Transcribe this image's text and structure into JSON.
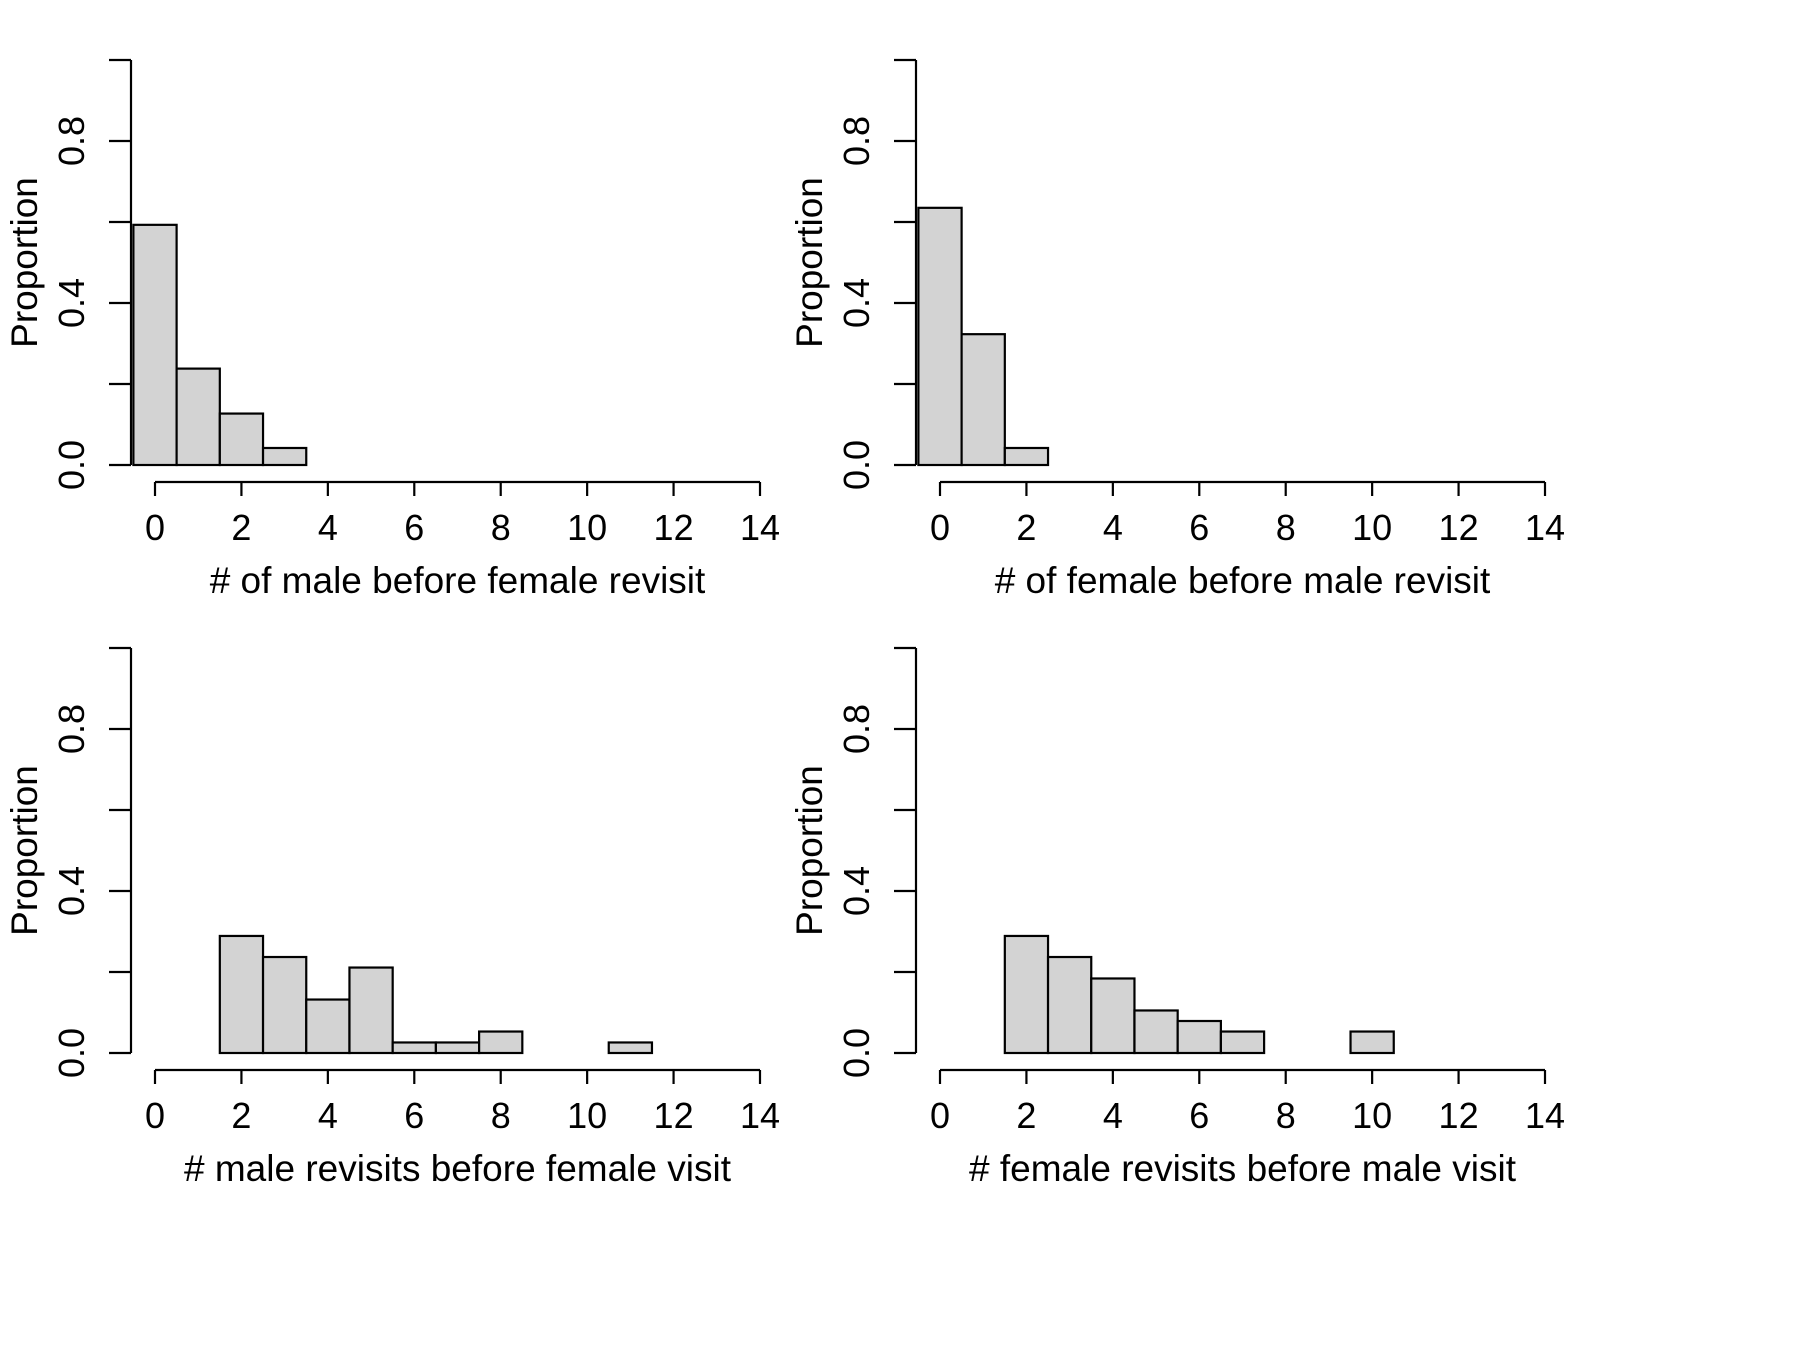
{
  "chart_data": [
    {
      "type": "bar",
      "xlabel": "# of male before female revisit",
      "ylabel": "Proportion",
      "xlim": [
        -0.5,
        13.5
      ],
      "ylim": [
        0,
        1
      ],
      "x_ticks": [
        "0",
        "2",
        "4",
        "6",
        "8",
        "10",
        "12",
        "14"
      ],
      "y_ticks": [
        "0.0",
        "0.4",
        "0.8"
      ],
      "grid": false,
      "categories": [
        "0",
        "1",
        "2",
        "3",
        "4",
        "5",
        "6",
        "7",
        "8",
        "9",
        "10",
        "11",
        "12",
        "13"
      ],
      "values": [
        0.593,
        0.238,
        0.127,
        0.042,
        0,
        0,
        0,
        0,
        0,
        0,
        0,
        0,
        0,
        0
      ]
    },
    {
      "type": "bar",
      "xlabel": "# of female before male revisit",
      "ylabel": "Proportion",
      "xlim": [
        -0.5,
        13.5
      ],
      "ylim": [
        0,
        1
      ],
      "x_ticks": [
        "0",
        "2",
        "4",
        "6",
        "8",
        "10",
        "12",
        "14"
      ],
      "y_ticks": [
        "0.0",
        "0.4",
        "0.8"
      ],
      "grid": false,
      "categories": [
        "0",
        "1",
        "2",
        "3",
        "4",
        "5",
        "6",
        "7",
        "8",
        "9",
        "10",
        "11",
        "12",
        "13"
      ],
      "values": [
        0.635,
        0.323,
        0.042,
        0,
        0,
        0,
        0,
        0,
        0,
        0,
        0,
        0,
        0,
        0
      ]
    },
    {
      "type": "bar",
      "xlabel": "# male revisits before female visit",
      "ylabel": "Proportion",
      "xlim": [
        -0.5,
        13.5
      ],
      "ylim": [
        0,
        1
      ],
      "x_ticks": [
        "0",
        "2",
        "4",
        "6",
        "8",
        "10",
        "12",
        "14"
      ],
      "y_ticks": [
        "0.0",
        "0.4",
        "0.8"
      ],
      "grid": false,
      "categories": [
        "0",
        "1",
        "2",
        "3",
        "4",
        "5",
        "6",
        "7",
        "8",
        "9",
        "10",
        "11",
        "12",
        "13"
      ],
      "values": [
        0,
        0,
        0.289,
        0.237,
        0.132,
        0.211,
        0.026,
        0.026,
        0.053,
        0,
        0,
        0.026,
        0,
        0
      ]
    },
    {
      "type": "bar",
      "xlabel": "# female revisits before male visit",
      "ylabel": "Proportion",
      "xlim": [
        -0.5,
        13.5
      ],
      "ylim": [
        0,
        1
      ],
      "x_ticks": [
        "0",
        "2",
        "4",
        "6",
        "8",
        "10",
        "12",
        "14"
      ],
      "y_ticks": [
        "0.0",
        "0.4",
        "0.8"
      ],
      "grid": false,
      "categories": [
        "0",
        "1",
        "2",
        "3",
        "4",
        "5",
        "6",
        "7",
        "8",
        "9",
        "10",
        "11",
        "12",
        "13"
      ],
      "values": [
        0,
        0,
        0.289,
        0.237,
        0.184,
        0.105,
        0.079,
        0.053,
        0,
        0,
        0.053,
        0,
        0,
        0
      ]
    }
  ],
  "colors": {
    "bar_fill": "#d3d3d3",
    "bar_stroke": "#000000",
    "axis": "#000000"
  }
}
